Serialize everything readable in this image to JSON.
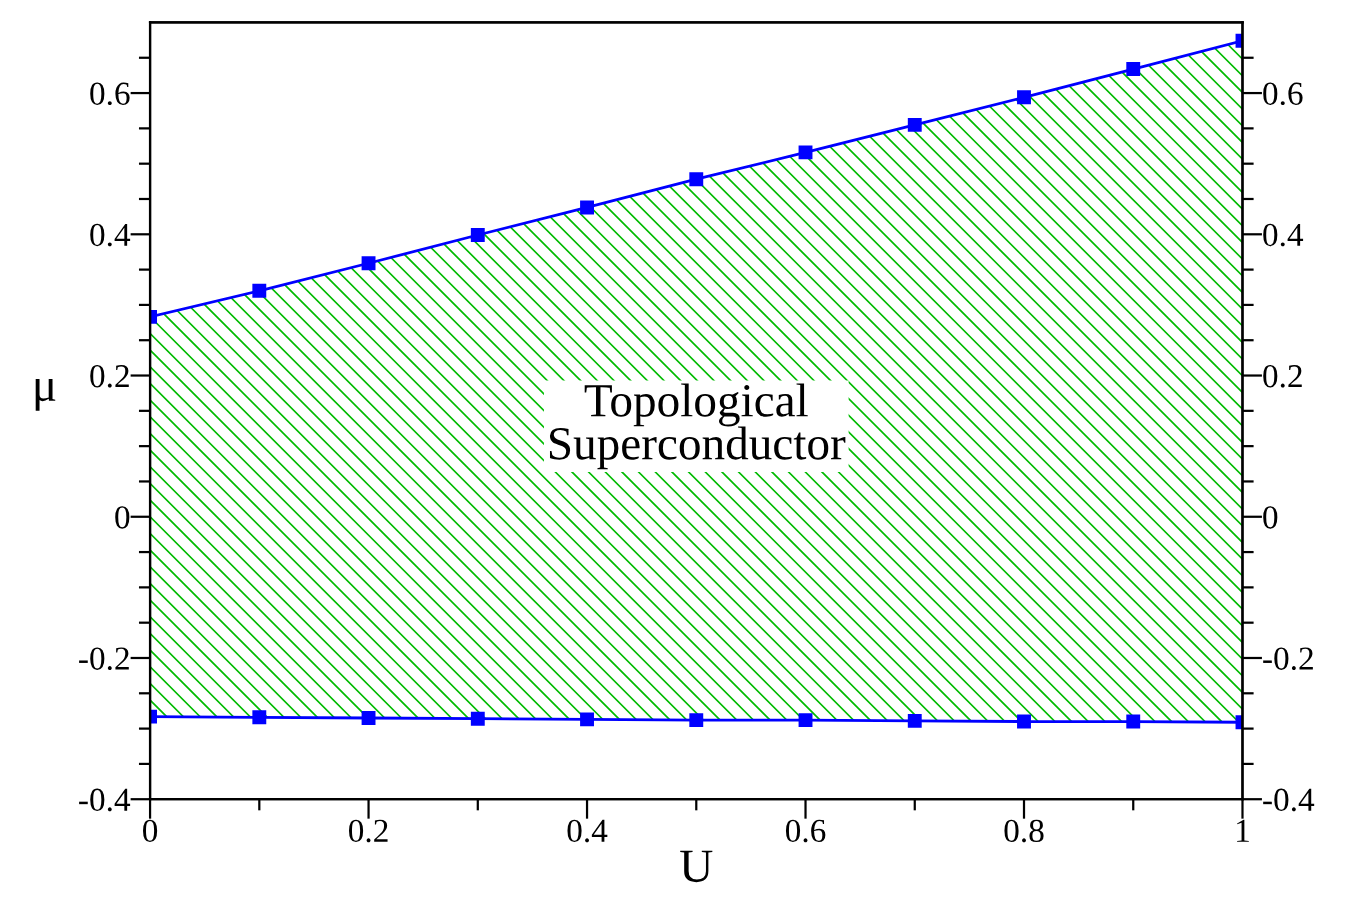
{
  "chart_data": {
    "type": "line",
    "xlabel": "U",
    "ylabel": "μ",
    "x": [
      0,
      0.1,
      0.2,
      0.3,
      0.4,
      0.5,
      0.6,
      0.7,
      0.8,
      0.9,
      1
    ],
    "series": [
      {
        "color": "#0000ff",
        "values": [
          -0.283,
          -0.284,
          -0.285,
          -0.286,
          -0.287,
          -0.288,
          -0.288,
          -0.289,
          -0.29,
          -0.29,
          -0.291
        ]
      },
      {
        "color": "#0000ff",
        "values": [
          0.283,
          0.32,
          0.359,
          0.399,
          0.438,
          0.478,
          0.516,
          0.555,
          0.594,
          0.634,
          0.674
        ],
        "lower": [
          -0.283,
          -0.284,
          -0.285,
          -0.286,
          -0.287,
          -0.288,
          -0.288,
          -0.289,
          -0.29,
          -0.29,
          -0.291
        ],
        "upper": [
          0.283,
          0.32,
          0.359,
          0.399,
          0.438,
          0.478,
          0.516,
          0.555,
          0.594,
          0.634,
          0.674
        ]
      }
    ],
    "annotations": [
      "Topological\nSuperconductor"
    ],
    "marker": "square",
    "line_style": "solid",
    "grid": false,
    "legend": false,
    "xlim": [
      0,
      1
    ],
    "ylim": [
      -0.4,
      0.7
    ],
    "xticks": [
      0,
      {
        "value": 0.1,
        "label": null
      },
      0.2,
      {
        "value": 0.3,
        "label": null
      },
      0.4,
      {
        "value": 0.5,
        "label": null
      },
      0.6,
      {
        "value": 0.7,
        "label": null
      },
      0.8,
      {
        "value": 0.9,
        "label": null
      },
      1
    ],
    "yticks": [
      -0.4,
      {
        "value": -0.35,
        "label": null
      },
      {
        "value": -0.3,
        "label": null
      },
      {
        "value": -0.25,
        "label": null
      },
      -0.2,
      {
        "value": -0.15,
        "label": null
      },
      {
        "value": -0.1,
        "label": null
      },
      {
        "value": -0.05,
        "label": null
      },
      0,
      {
        "value": 0.05,
        "label": null
      },
      {
        "value": 0.1,
        "label": null
      },
      {
        "value": 0.15,
        "label": null
      },
      0.2,
      {
        "value": 0.25,
        "label": null
      },
      {
        "value": 0.3,
        "label": null
      },
      {
        "value": 0.35,
        "label": null
      },
      0.4,
      {
        "value": 0.45,
        "label": null
      },
      {
        "value": 0.5,
        "label": null
      },
      {
        "value": 0.55,
        "label": null
      },
      0.6,
      {
        "value": 0.65,
        "label": null
      }
    ],
    "y2lim": [
      -0.4,
      0.7
    ],
    "y2ticks": [
      -0.4,
      {
        "value": -0.35,
        "label": null
      },
      {
        "value": -0.3,
        "label": null
      },
      {
        "value": -0.25,
        "label": null
      },
      -0.2,
      {
        "value": -0.15,
        "label": null
      },
      {
        "value": -0.1,
        "label": null
      },
      {
        "value": -0.05,
        "label": null
      },
      0,
      {
        "value": 0.05,
        "label": null
      },
      {
        "value": 0.1,
        "label": null
      },
      {
        "value": 0.15,
        "label": null
      },
      0.2,
      {
        "value": 0.25,
        "label": null
      },
      {
        "value": 0.3,
        "label": null
      },
      {
        "value": 0.35,
        "label": null
      },
      0.4,
      {
        "value": 0.45,
        "label": null
      },
      {
        "value": 0.5,
        "label": null
      },
      {
        "value": 0.55,
        "label": null
      },
      0.6,
      {
        "value": 0.65,
        "label": null
      }
    ]
  }
}
